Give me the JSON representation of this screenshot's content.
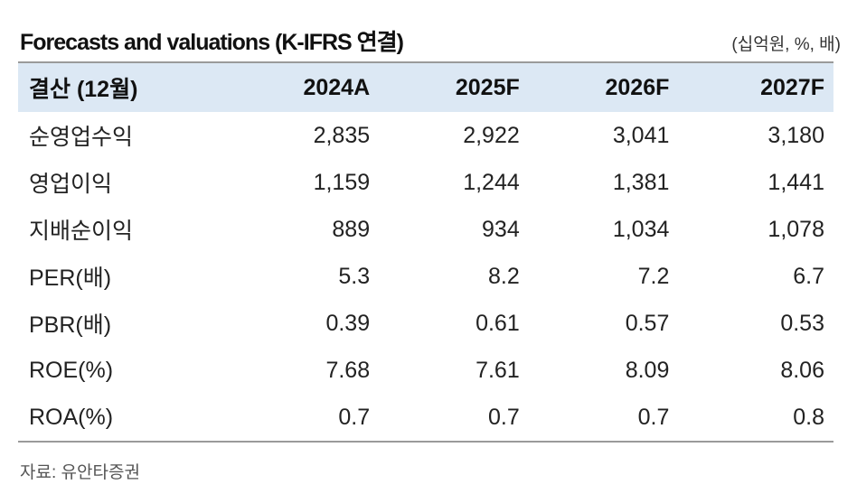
{
  "title": "Forecasts and valuations (K-IFRS 연결)",
  "unit": "(십억원, %, 배)",
  "table": {
    "header": {
      "label": "결산 (12월)",
      "years": [
        "2024A",
        "2025F",
        "2026F",
        "2027F"
      ]
    },
    "rows": [
      {
        "label": "순영업수익",
        "values": [
          "2,835",
          "2,922",
          "3,041",
          "3,180"
        ]
      },
      {
        "label": "영업이익",
        "values": [
          "1,159",
          "1,244",
          "1,381",
          "1,441"
        ]
      },
      {
        "label": "지배순이익",
        "values": [
          "889",
          "934",
          "1,034",
          "1,078"
        ]
      },
      {
        "label": "PER(배)",
        "values": [
          "5.3",
          "8.2",
          "7.2",
          "6.7"
        ]
      },
      {
        "label": "PBR(배)",
        "values": [
          "0.39",
          "0.61",
          "0.57",
          "0.53"
        ]
      },
      {
        "label": "ROE(%)",
        "values": [
          "7.68",
          "7.61",
          "8.09",
          "8.06"
        ]
      },
      {
        "label": "ROA(%)",
        "values": [
          "0.7",
          "0.7",
          "0.7",
          "0.8"
        ]
      }
    ]
  },
  "source": "자료: 유안타증권"
}
